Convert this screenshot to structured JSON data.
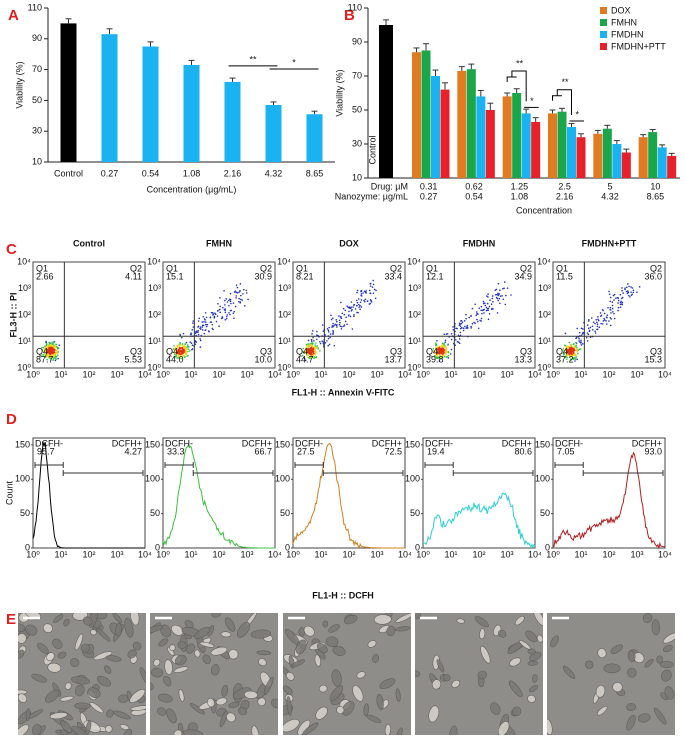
{
  "chart_data": [
    {
      "type": "bar",
      "panel": "A",
      "categories": [
        "Control",
        "0.27",
        "0.54",
        "1.08",
        "2.16",
        "4.32",
        "8.65"
      ],
      "values": [
        100,
        93,
        85,
        73,
        62,
        47,
        41
      ],
      "errors": [
        3,
        3.5,
        3,
        3,
        2.5,
        2,
        2
      ],
      "colors": [
        "#000000",
        "#1ab2f0",
        "#1ab2f0",
        "#1ab2f0",
        "#1ab2f0",
        "#1ab2f0",
        "#1ab2f0"
      ],
      "ylim": [
        10,
        110
      ],
      "yticks": [
        10,
        30,
        50,
        70,
        90,
        110
      ],
      "ylabel": "Viability (%)",
      "xlabel": "Concentration (µg/mL)",
      "annotations": [
        "**",
        "*"
      ]
    },
    {
      "type": "grouped_bar",
      "panel": "B",
      "control": {
        "name": "Control",
        "value": 100,
        "error": 3,
        "color": "#000000"
      },
      "categories": [
        "0.31",
        "0.62",
        "1.25",
        "2.5",
        "5",
        "10"
      ],
      "categories2": [
        "0.27",
        "0.54",
        "1.08",
        "2.16",
        "4.32",
        "8.65"
      ],
      "row_labels": [
        "Drug: µM",
        "Nanozyme: µg/mL"
      ],
      "series": [
        {
          "name": "DOX",
          "color": "#e07b22",
          "values": [
            84,
            73,
            58,
            48,
            36,
            34
          ],
          "errors": [
            2.5,
            2.5,
            2,
            2,
            2,
            1.5
          ]
        },
        {
          "name": "FMHN",
          "color": "#1aa64a",
          "values": [
            85,
            74,
            60,
            49,
            39,
            37
          ],
          "errors": [
            4,
            3,
            2.5,
            2,
            2,
            1.5
          ]
        },
        {
          "name": "FMDHN",
          "color": "#1ab2f0",
          "values": [
            70,
            58,
            48,
            40,
            30,
            28
          ],
          "errors": [
            3.5,
            3.5,
            2.5,
            2,
            2,
            1.5
          ]
        },
        {
          "name": "FMDHN+PTT",
          "color": "#e8202a",
          "values": [
            62,
            50,
            43,
            34,
            25,
            23
          ],
          "errors": [
            4,
            4,
            2.5,
            2,
            2,
            1.5
          ]
        }
      ],
      "ylim": [
        10,
        110
      ],
      "yticks": [
        10,
        30,
        50,
        70,
        90,
        110
      ],
      "ylabel": "Viability (%)",
      "xlabel": "Concentration",
      "legend": "top-right",
      "annotations": [
        "**",
        "*",
        "**",
        "*"
      ]
    }
  ],
  "panel_c": {
    "label": "C",
    "y_label": "FL3-H :: PI",
    "x_label": "FL1-H :: Annexin V-FITC",
    "ticks": [
      "10⁰",
      "10¹",
      "10²",
      "10³",
      "10⁴"
    ],
    "quadrant_names": [
      "Q1",
      "Q2",
      "Q3",
      "Q4"
    ],
    "plots": [
      {
        "title": "Control",
        "quadrants": [
          "2.66",
          "4.11",
          "5.53",
          "87.7"
        ]
      },
      {
        "title": "FMHN",
        "quadrants": [
          "15.1",
          "30.9",
          "10.0",
          "44.0"
        ]
      },
      {
        "title": "DOX",
        "quadrants": [
          "8.21",
          "33.4",
          "13.7",
          "44.7"
        ]
      },
      {
        "title": "FMDHN",
        "quadrants": [
          "12.1",
          "34.9",
          "13.3",
          "39.8"
        ]
      },
      {
        "title": "FMDHN+PTT",
        "quadrants": [
          "11.5",
          "36.0",
          "15.3",
          "37.2"
        ]
      }
    ]
  },
  "panel_d": {
    "label": "D",
    "y_label": "Count",
    "x_label": "FL1-H :: DCFH",
    "ylim": [
      0,
      160
    ],
    "yticks": [
      0,
      50,
      100,
      150
    ],
    "xticks": [
      "10⁰",
      "10¹",
      "10²",
      "10³",
      "10⁴"
    ],
    "gate_names": [
      "DCFH-",
      "DCFH+"
    ],
    "plots": [
      {
        "color": "#000000",
        "gates": [
          "95.7",
          "4.27"
        ]
      },
      {
        "color": "#3cc03c",
        "gates": [
          "33.3",
          "66.7"
        ]
      },
      {
        "color": "#d08020",
        "gates": [
          "27.5",
          "72.5"
        ]
      },
      {
        "color": "#30d0d0",
        "gates": [
          "19.4",
          "80.6"
        ]
      },
      {
        "color": "#b02020",
        "gates": [
          "7.05",
          "93.0"
        ]
      }
    ]
  },
  "panel_e": {
    "label": "E"
  }
}
